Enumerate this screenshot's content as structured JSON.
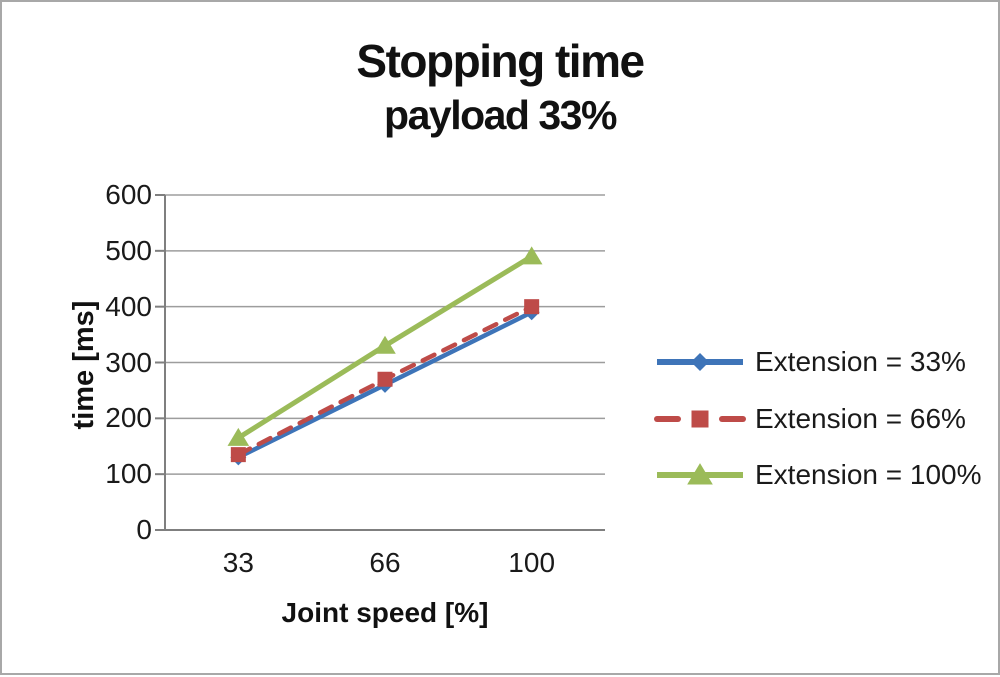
{
  "title": "Stopping time",
  "subtitle": "payload 33%",
  "chart_data": {
    "type": "line",
    "title": "Stopping time",
    "subtitle": "payload 33%",
    "categories": [
      "33",
      "66",
      "100"
    ],
    "xlabel": "Joint speed [%]",
    "ylabel": "time [ms]",
    "ylim": [
      0,
      600
    ],
    "ytick_step": 100,
    "grid": true,
    "legend_position": "right",
    "series": [
      {
        "name": "Extension = 33%",
        "color": "#3E74B8",
        "line_style": "solid",
        "marker": "diamond",
        "values": [
          130,
          260,
          390
        ]
      },
      {
        "name": "Extension = 66%",
        "color": "#BE4B48",
        "line_style": "dashed",
        "marker": "square",
        "values": [
          135,
          270,
          400
        ]
      },
      {
        "name": "Extension = 100%",
        "color": "#9BBB59",
        "line_style": "solid",
        "marker": "triangle",
        "values": [
          165,
          330,
          490
        ]
      }
    ]
  },
  "theme": {
    "background": "#FFFFFF",
    "border": "#A8A8A8",
    "gridline": "#9D9D9D",
    "axis": "#7F7F7F",
    "text": "#1A1A1A"
  }
}
